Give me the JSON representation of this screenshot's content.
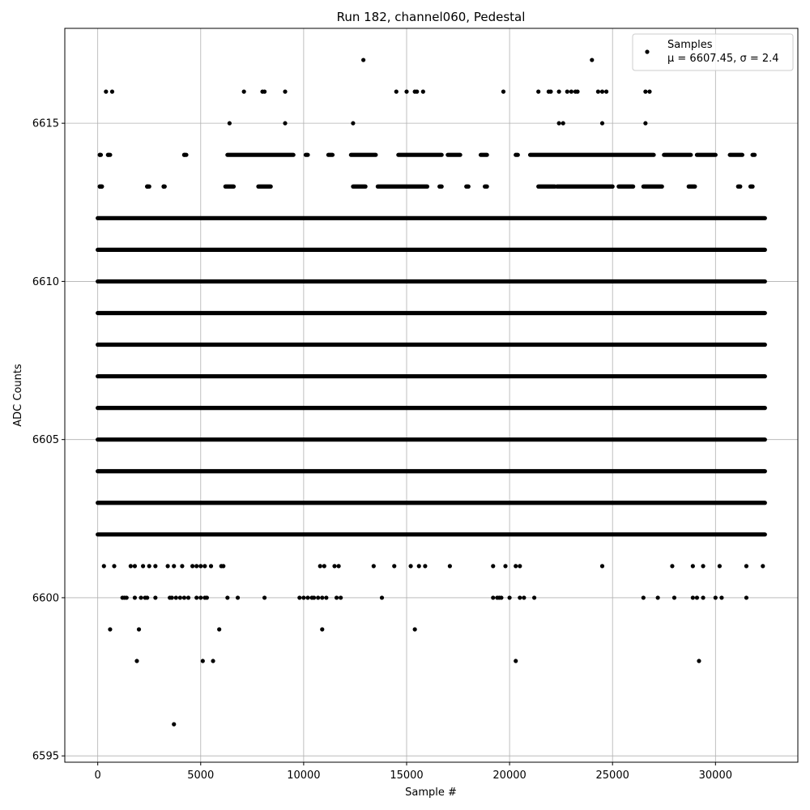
{
  "chart_data": {
    "type": "scatter",
    "title": "Run 182, channel060, Pedestal",
    "xlabel": "Sample #",
    "ylabel": "ADC Counts",
    "xlim": [
      -1600,
      34000
    ],
    "ylim": [
      6594.8,
      6618.0
    ],
    "xticks": [
      0,
      5000,
      10000,
      15000,
      20000,
      25000,
      30000
    ],
    "yticks": [
      6595,
      6600,
      6605,
      6610,
      6615
    ],
    "grid": true,
    "legend": {
      "position": "top-right",
      "entries": [
        "Samples",
        "μ = 6607.45, σ = 2.4"
      ]
    },
    "marker_color": "#000000",
    "n_samples": 32400,
    "dense_levels": {
      "x_range": [
        0,
        32400
      ],
      "y": [
        6602,
        6603,
        6604,
        6605,
        6606,
        6607,
        6608,
        6609,
        6610,
        6611,
        6612
      ]
    },
    "sparse_level_segments": [
      {
        "y": 6613,
        "x_ranges": [
          [
            100,
            200
          ],
          [
            2400,
            2500
          ],
          [
            3200,
            3250
          ],
          [
            6200,
            6600
          ],
          [
            7800,
            8400
          ],
          [
            12400,
            13000
          ],
          [
            13600,
            16000
          ],
          [
            16600,
            16700
          ],
          [
            17900,
            18000
          ],
          [
            18800,
            18900
          ],
          [
            21400,
            22200
          ],
          [
            22300,
            25000
          ],
          [
            25300,
            26000
          ],
          [
            26500,
            27400
          ],
          [
            28700,
            29000
          ],
          [
            31100,
            31200
          ],
          [
            31700,
            31800
          ]
        ]
      },
      {
        "y": 6614,
        "x_ranges": [
          [
            100,
            150
          ],
          [
            500,
            600
          ],
          [
            4200,
            4300
          ],
          [
            6300,
            9500
          ],
          [
            10100,
            10200
          ],
          [
            11200,
            11400
          ],
          [
            12300,
            13500
          ],
          [
            14600,
            16700
          ],
          [
            17000,
            17600
          ],
          [
            18600,
            18900
          ],
          [
            20300,
            20400
          ],
          [
            21000,
            27000
          ],
          [
            27500,
            28800
          ],
          [
            29100,
            30000
          ],
          [
            30700,
            31300
          ],
          [
            31800,
            31900
          ]
        ]
      }
    ],
    "points": [
      [
        3700,
        6596
      ],
      [
        1900,
        6598
      ],
      [
        5100,
        6598
      ],
      [
        5600,
        6598
      ],
      [
        20300,
        6598
      ],
      [
        29200,
        6598
      ],
      [
        600,
        6599
      ],
      [
        2000,
        6599
      ],
      [
        5900,
        6599
      ],
      [
        10900,
        6599
      ],
      [
        15400,
        6599
      ],
      [
        1200,
        6600
      ],
      [
        1300,
        6600
      ],
      [
        1400,
        6600
      ],
      [
        1800,
        6600
      ],
      [
        2100,
        6600
      ],
      [
        2300,
        6600
      ],
      [
        2400,
        6600
      ],
      [
        2800,
        6600
      ],
      [
        3500,
        6600
      ],
      [
        3600,
        6600
      ],
      [
        3800,
        6600
      ],
      [
        4000,
        6600
      ],
      [
        4200,
        6600
      ],
      [
        4400,
        6600
      ],
      [
        4800,
        6600
      ],
      [
        5000,
        6600
      ],
      [
        5200,
        6600
      ],
      [
        5300,
        6600
      ],
      [
        6300,
        6600
      ],
      [
        6800,
        6600
      ],
      [
        8100,
        6600
      ],
      [
        9800,
        6600
      ],
      [
        10000,
        6600
      ],
      [
        10200,
        6600
      ],
      [
        10400,
        6600
      ],
      [
        10500,
        6600
      ],
      [
        10700,
        6600
      ],
      [
        10900,
        6600
      ],
      [
        11100,
        6600
      ],
      [
        11600,
        6600
      ],
      [
        11800,
        6600
      ],
      [
        13800,
        6600
      ],
      [
        19200,
        6600
      ],
      [
        19400,
        6600
      ],
      [
        19500,
        6600
      ],
      [
        19600,
        6600
      ],
      [
        20000,
        6600
      ],
      [
        20500,
        6600
      ],
      [
        20700,
        6600
      ],
      [
        21200,
        6600
      ],
      [
        26500,
        6600
      ],
      [
        27200,
        6600
      ],
      [
        28000,
        6600
      ],
      [
        28900,
        6600
      ],
      [
        29100,
        6600
      ],
      [
        29400,
        6600
      ],
      [
        30000,
        6600
      ],
      [
        30300,
        6600
      ],
      [
        31500,
        6600
      ],
      [
        300,
        6601
      ],
      [
        800,
        6601
      ],
      [
        1600,
        6601
      ],
      [
        1800,
        6601
      ],
      [
        2200,
        6601
      ],
      [
        2500,
        6601
      ],
      [
        2800,
        6601
      ],
      [
        3400,
        6601
      ],
      [
        3700,
        6601
      ],
      [
        4100,
        6601
      ],
      [
        4600,
        6601
      ],
      [
        4800,
        6601
      ],
      [
        5000,
        6601
      ],
      [
        5200,
        6601
      ],
      [
        5500,
        6601
      ],
      [
        6000,
        6601
      ],
      [
        6100,
        6601
      ],
      [
        10800,
        6601
      ],
      [
        11000,
        6601
      ],
      [
        11500,
        6601
      ],
      [
        11700,
        6601
      ],
      [
        13400,
        6601
      ],
      [
        14400,
        6601
      ],
      [
        15200,
        6601
      ],
      [
        15600,
        6601
      ],
      [
        15900,
        6601
      ],
      [
        17100,
        6601
      ],
      [
        19200,
        6601
      ],
      [
        19800,
        6601
      ],
      [
        20300,
        6601
      ],
      [
        20500,
        6601
      ],
      [
        24500,
        6601
      ],
      [
        27900,
        6601
      ],
      [
        28900,
        6601
      ],
      [
        29400,
        6601
      ],
      [
        30200,
        6601
      ],
      [
        31500,
        6601
      ],
      [
        32300,
        6601
      ],
      [
        100,
        6613
      ],
      [
        200,
        6613
      ],
      [
        2400,
        6613
      ],
      [
        3200,
        6613
      ],
      [
        100,
        6614
      ],
      [
        500,
        6614
      ],
      [
        4200,
        6614
      ],
      [
        6400,
        6615
      ],
      [
        9100,
        6615
      ],
      [
        12400,
        6615
      ],
      [
        22400,
        6615
      ],
      [
        22600,
        6615
      ],
      [
        24500,
        6615
      ],
      [
        26600,
        6615
      ],
      [
        400,
        6616
      ],
      [
        700,
        6616
      ],
      [
        7100,
        6616
      ],
      [
        8000,
        6616
      ],
      [
        8100,
        6616
      ],
      [
        9100,
        6616
      ],
      [
        14500,
        6616
      ],
      [
        15000,
        6616
      ],
      [
        15400,
        6616
      ],
      [
        15500,
        6616
      ],
      [
        15800,
        6616
      ],
      [
        19700,
        6616
      ],
      [
        21400,
        6616
      ],
      [
        21900,
        6616
      ],
      [
        22000,
        6616
      ],
      [
        22400,
        6616
      ],
      [
        22800,
        6616
      ],
      [
        23000,
        6616
      ],
      [
        23200,
        6616
      ],
      [
        23300,
        6616
      ],
      [
        24300,
        6616
      ],
      [
        24500,
        6616
      ],
      [
        24700,
        6616
      ],
      [
        26600,
        6616
      ],
      [
        26800,
        6616
      ],
      [
        12900,
        6617
      ],
      [
        24000,
        6617
      ]
    ]
  }
}
